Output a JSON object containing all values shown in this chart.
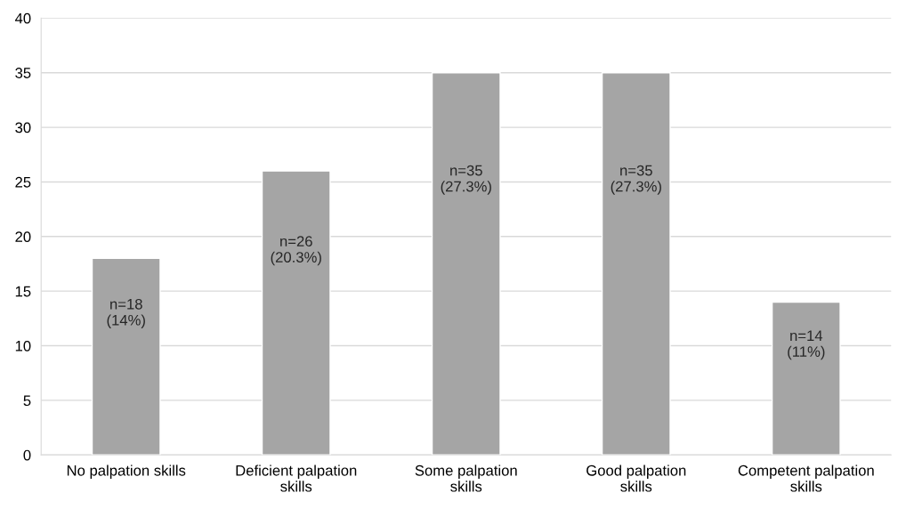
{
  "chart_data": {
    "type": "bar",
    "categories": [
      "No palpation skills",
      "Deficient palpation skills",
      "Some palpation skills",
      "Good palpation skills",
      "Competent palpation skills"
    ],
    "values": [
      18,
      26,
      35,
      35,
      14
    ],
    "value_labels": [
      "n=18\n(14%)",
      "n=26\n(20.3%)",
      "n=35\n(27.3%)",
      "n=35\n(27.3%)",
      "n=14\n(11%)"
    ],
    "color": "#a5a5a5",
    "ylim": [
      0,
      40
    ],
    "yticks": [
      0,
      5,
      10,
      15,
      20,
      25,
      30,
      35,
      40
    ],
    "grid": "y",
    "legend": false
  }
}
